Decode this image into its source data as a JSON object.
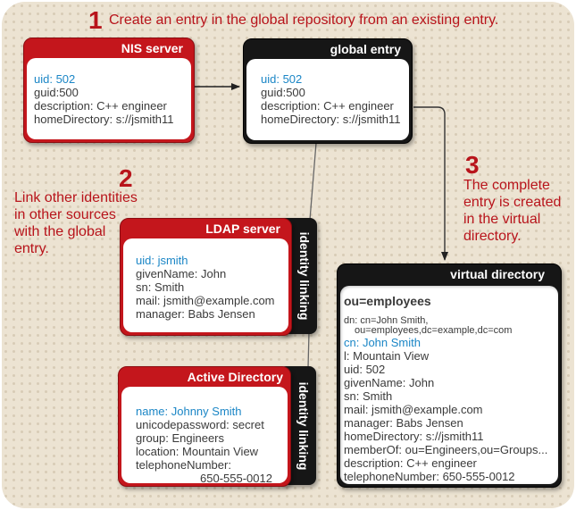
{
  "steps": {
    "step1": {
      "number": "1",
      "text": "Create an entry in the global repository from an existing entry."
    },
    "step2": {
      "number": "2",
      "lines": [
        "Link other identities",
        "in other sources",
        "with the global",
        "entry."
      ]
    },
    "step3": {
      "number": "3",
      "lines": [
        "The complete",
        "entry is created",
        "in the virtual",
        "directory."
      ]
    }
  },
  "nis_server": {
    "title": "NIS server",
    "lines": [
      "uid: 502",
      "guid:500",
      "description: C++ engineer",
      "homeDirectory: s://jsmith11"
    ]
  },
  "global_entry": {
    "title": "global entry",
    "lines": [
      "uid: 502",
      "guid:500",
      "description: C++ engineer",
      "homeDirectory: s://jsmith11"
    ]
  },
  "ldap_server": {
    "title": "LDAP server",
    "tab": "identity linking",
    "lines": [
      "uid: jsmith",
      "givenName: John",
      "sn: Smith",
      "mail: jsmith@example.com",
      "manager: Babs Jensen"
    ]
  },
  "active_directory": {
    "title": "Active Directory",
    "tab": "identity linking",
    "lines": [
      "name: Johnny Smith",
      "unicodepassword: secret",
      "group: Engineers",
      "location: Mountain View",
      "telephoneNumber:",
      "650-555-0012"
    ]
  },
  "virtual_directory": {
    "title": "virtual directory",
    "ou": "ou=employees",
    "dn_lines": [
      "dn: cn=John Smith,",
      "ou=employees,dc=example,dc=com"
    ],
    "lines": [
      "cn: John Smith",
      "l: Mountain View",
      "uid: 502",
      "givenName: John",
      "sn: Smith",
      "mail: jsmith@example.com",
      "manager: Babs Jensen",
      "homeDirectory: s://jsmith11",
      "memberOf: ou=Engineers,ou=Groups...",
      "description: C++ engineer",
      "telephoneNumber: 650-555-0012"
    ]
  },
  "colors": {
    "accent_red": "#c4161c",
    "attr_blue": "#1b86c6",
    "dark": "#161616",
    "background": "#ece3d2"
  }
}
